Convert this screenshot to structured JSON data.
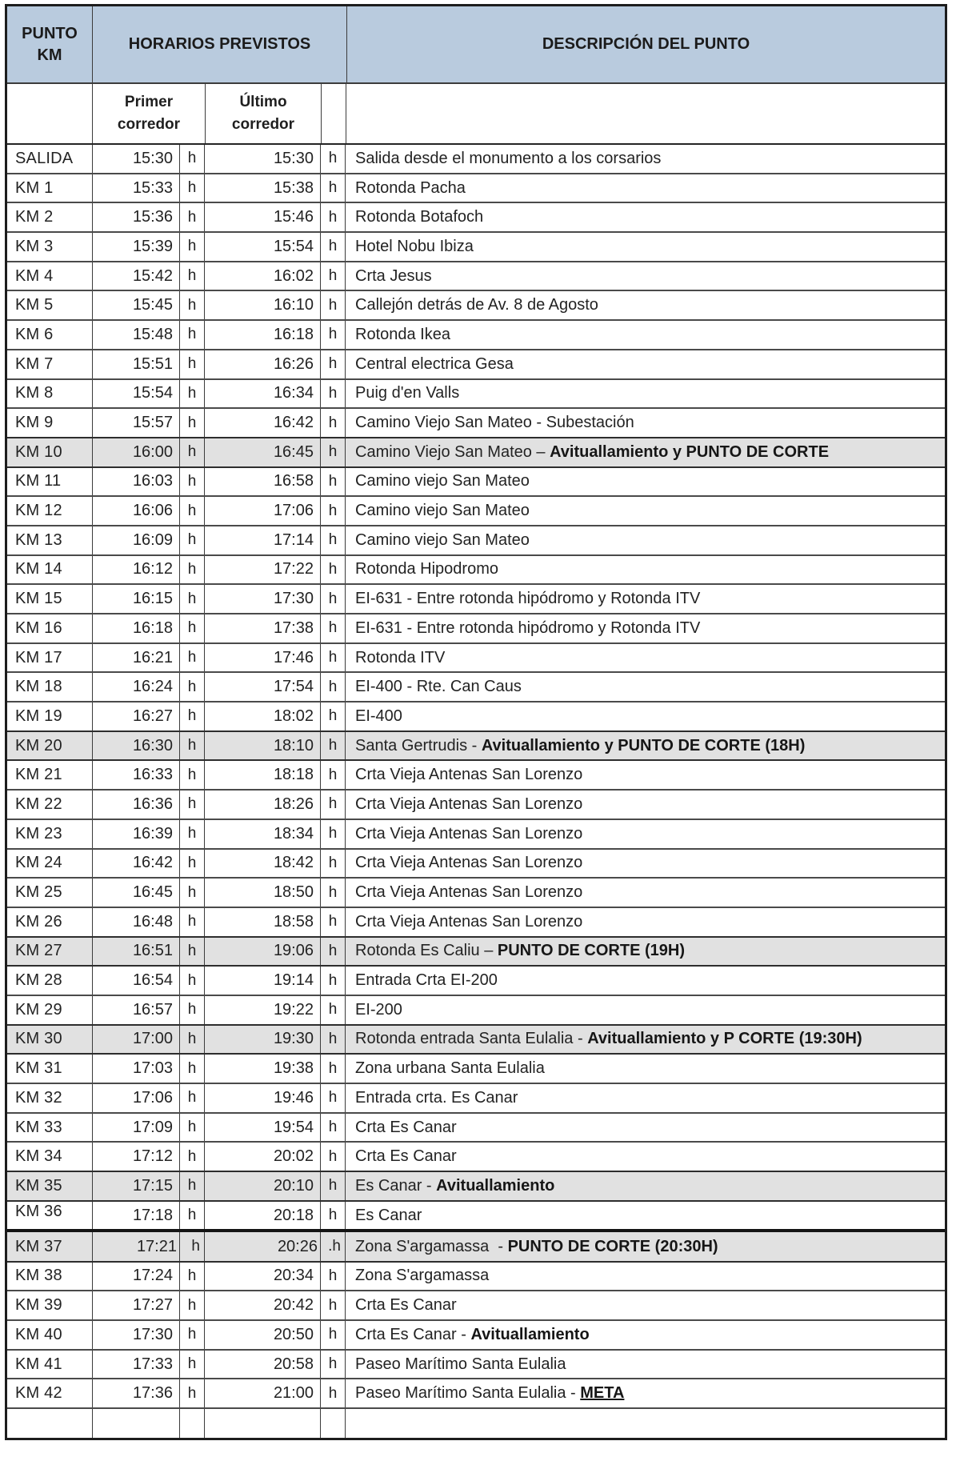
{
  "table": {
    "header": {
      "punto_km": "PUNTO KM",
      "horarios": "HORARIOS PREVISTOS",
      "descripcion": "DESCRIPCIÓN DEL PUNTO"
    },
    "subheader": {
      "primer": "Primer corredor",
      "ultimo": "Último corredor"
    },
    "hour_unit": "h",
    "colors": {
      "header_blue": "#b9cbde",
      "highlight_gray": "#e1e1e1"
    },
    "rows": [
      {
        "km": "SALIDA",
        "first": "15:30",
        "last": "15:30",
        "desc": "Salida desde el monumento a los corsarios"
      },
      {
        "km": "KM 1",
        "first": "15:33",
        "last": "15:38",
        "desc": "Rotonda Pacha"
      },
      {
        "km": "KM 2",
        "first": "15:36",
        "last": "15:46",
        "desc": "Rotonda Botafoch"
      },
      {
        "km": "KM 3",
        "first": "15:39",
        "last": "15:54",
        "desc": "Hotel Nobu Ibiza"
      },
      {
        "km": "KM 4",
        "first": "15:42",
        "last": "16:02",
        "desc": "Crta Jesus"
      },
      {
        "km": "KM 5",
        "first": "15:45",
        "last": "16:10",
        "desc": "Callejón detrás de Av. 8 de Agosto"
      },
      {
        "km": "KM 6",
        "first": "15:48",
        "last": "16:18",
        "desc": "Rotonda Ikea"
      },
      {
        "km": "KM 7",
        "first": "15:51",
        "last": "16:26",
        "desc": "Central electrica Gesa"
      },
      {
        "km": "KM 8",
        "first": "15:54",
        "last": "16:34",
        "desc": "Puig d'en Valls"
      },
      {
        "km": "KM 9",
        "first": "15:57",
        "last": "16:42",
        "desc": "Camino Viejo San Mateo - Subestación"
      },
      {
        "km": "KM 10",
        "first": "16:00",
        "last": "16:45",
        "desc": "Camino Viejo San Mateo – ",
        "desc_bold": "Avituallamiento y PUNTO DE CORTE",
        "hl": true
      },
      {
        "km": "KM 11",
        "first": "16:03",
        "last": "16:58",
        "desc": "Camino viejo San Mateo"
      },
      {
        "km": "KM 12",
        "first": "16:06",
        "last": "17:06",
        "desc": "Camino viejo San Mateo"
      },
      {
        "km": "KM 13",
        "first": "16:09",
        "last": "17:14",
        "desc": "Camino viejo San Mateo"
      },
      {
        "km": "KM 14",
        "first": "16:12",
        "last": "17:22",
        "desc": "Rotonda Hipodromo"
      },
      {
        "km": "KM 15",
        "first": "16:15",
        "last": "17:30",
        "desc": "EI-631 - Entre rotonda hipódromo y Rotonda ITV"
      },
      {
        "km": "KM 16",
        "first": "16:18",
        "last": "17:38",
        "desc": "EI-631 - Entre rotonda hipódromo y Rotonda ITV"
      },
      {
        "km": "KM 17",
        "first": "16:21",
        "last": "17:46",
        "desc": "Rotonda ITV"
      },
      {
        "km": "KM 18",
        "first": "16:24",
        "last": "17:54",
        "desc": "EI-400 - Rte. Can Caus"
      },
      {
        "km": "KM 19",
        "first": "16:27",
        "last": "18:02",
        "desc": "EI-400"
      },
      {
        "km": "KM 20",
        "first": "16:30",
        "last": "18:10",
        "desc": "Santa Gertrudis - ",
        "desc_bold": "Avituallamiento y PUNTO DE CORTE (18H)",
        "hl": true
      },
      {
        "km": "KM 21",
        "first": "16:33",
        "last": "18:18",
        "desc": "Crta Vieja Antenas San Lorenzo"
      },
      {
        "km": "KM 22",
        "first": "16:36",
        "last": "18:26",
        "desc": "Crta Vieja Antenas San Lorenzo"
      },
      {
        "km": "KM 23",
        "first": "16:39",
        "last": "18:34",
        "desc": "Crta Vieja Antenas San Lorenzo"
      },
      {
        "km": "KM 24",
        "first": "16:42",
        "last": "18:42",
        "desc": "Crta Vieja Antenas San Lorenzo"
      },
      {
        "km": "KM 25",
        "first": "16:45",
        "last": "18:50",
        "desc": "Crta Vieja Antenas San Lorenzo"
      },
      {
        "km": "KM 26",
        "first": "16:48",
        "last": "18:58",
        "desc": "Crta Vieja Antenas San Lorenzo"
      },
      {
        "km": "KM 27",
        "first": "16:51",
        "last": "19:06",
        "desc": "Rotonda Es Caliu – ",
        "desc_bold": "PUNTO DE CORTE (19H)",
        "hl": true
      },
      {
        "km": "KM 28",
        "first": "16:54",
        "last": "19:14",
        "desc": "Entrada Crta EI-200"
      },
      {
        "km": "KM 29",
        "first": "16:57",
        "last": "19:22",
        "desc": "EI-200"
      },
      {
        "km": "KM 30",
        "first": "17:00",
        "last": "19:30",
        "desc": "Rotonda entrada Santa Eulalia - ",
        "desc_bold": "Avituallamiento y P CORTE (19:30H)",
        "hl": true
      },
      {
        "km": "KM 31",
        "first": "17:03",
        "last": "19:38",
        "desc": "Zona urbana Santa Eulalia"
      },
      {
        "km": "KM 32",
        "first": "17:06",
        "last": "19:46",
        "desc": "Entrada crta. Es Canar"
      },
      {
        "km": "KM 33",
        "first": "17:09",
        "last": "19:54",
        "desc": "Crta Es Canar"
      },
      {
        "km": "KM 34",
        "first": "17:12",
        "last": "20:02",
        "desc": "Crta Es Canar"
      },
      {
        "km": "KM 35",
        "first": "17:15",
        "last": "20:10",
        "desc": "Es Canar - ",
        "desc_bold": "Avituallamiento",
        "hl": true
      },
      {
        "km": "KM 36",
        "first": "17:18",
        "last": "20:18",
        "desc": "Es Canar",
        "km_raised": true
      },
      {
        "km": "KM 37",
        "first": "17:21",
        "last": "20:26",
        "desc": "Zona S'argamassa  - ",
        "desc_bold": "PUNTO DE CORTE (20:30H)",
        "hl": true,
        "thick_top": true,
        "quirk": true,
        "h2": ".h"
      },
      {
        "km": "KM 38",
        "first": "17:24",
        "last": "20:34",
        "desc": "Zona S'argamassa"
      },
      {
        "km": "KM 39",
        "first": "17:27",
        "last": "20:42",
        "desc": "Crta Es Canar"
      },
      {
        "km": "KM 40",
        "first": "17:30",
        "last": "20:50",
        "desc": "Crta Es Canar - ",
        "desc_bold": "Avituallamiento"
      },
      {
        "km": "KM 41",
        "first": "17:33",
        "last": "20:58",
        "desc": "Paseo Marítimo Santa Eulalia"
      },
      {
        "km": "KM 42",
        "first": "17:36",
        "last": "21:00",
        "desc": "Paseo Marítimo Santa Eulalia - ",
        "desc_bold": "META",
        "underline": true
      },
      {
        "km": "",
        "first": "",
        "last": "",
        "desc": "",
        "empty": true
      }
    ]
  }
}
